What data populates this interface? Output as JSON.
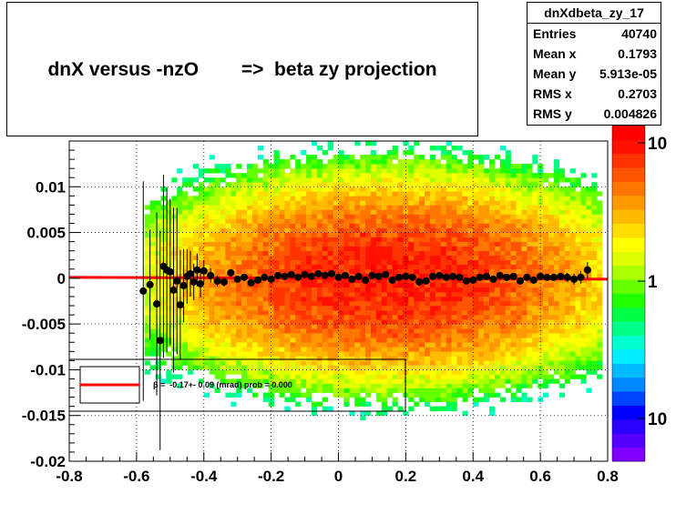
{
  "title": "dnX versus -nzO        =>  beta zy projection",
  "stats": {
    "name": "dnXdbeta_zy_17",
    "rows": [
      {
        "label": "Entries",
        "value": "40740"
      },
      {
        "label": "Mean x",
        "value": "0.1793"
      },
      {
        "label": "Mean y",
        "value": "5.913e-05"
      },
      {
        "label": "RMS x",
        "value": "0.2703"
      },
      {
        "label": "RMS y",
        "value": "0.004826"
      }
    ]
  },
  "fit_label": "β =  -0.17+- 0.09 (mrad) prob = 0.000",
  "colors": {
    "fit_line": "#ff0000",
    "profile_points": "#000000",
    "grid": "#000000"
  },
  "chart_data": {
    "type": "heatmap",
    "title": "dnX versus -nzO        =>  beta zy projection",
    "xlim": [
      -0.8,
      0.8
    ],
    "ylim": [
      -0.02,
      0.015
    ],
    "x_ticks": [
      "-0.8",
      "-0.6",
      "-0.4",
      "-0.2",
      "0",
      "0.2",
      "0.4",
      "0.6",
      "0.8"
    ],
    "y_ticks": [
      "-0.02",
      "-0.015",
      "-0.01",
      "-0.005",
      "0",
      "0.005",
      "0.01"
    ],
    "z_ticks": [
      "10",
      "1",
      "10"
    ],
    "z_scale": "log",
    "grid": true,
    "stats": {
      "entries": 40740,
      "mean_x": 0.1793,
      "mean_y": 5.913e-05,
      "rms_x": 0.2703,
      "rms_y": 0.004826
    },
    "fit": {
      "type": "line",
      "beta_mrad": -0.17,
      "beta_err_mrad": 0.09,
      "prob": 0.0,
      "y_at_xmin": 0.0001,
      "y_at_xmax": -0.0001
    },
    "profile": {
      "x": [
        -0.58,
        -0.56,
        -0.54,
        -0.53,
        -0.52,
        -0.51,
        -0.5,
        -0.49,
        -0.48,
        -0.47,
        -0.46,
        -0.45,
        -0.44,
        -0.43,
        -0.42,
        -0.41,
        -0.4,
        -0.38,
        -0.36,
        -0.34,
        -0.32,
        -0.3,
        -0.28,
        -0.26,
        -0.24,
        -0.22,
        -0.2,
        -0.18,
        -0.16,
        -0.14,
        -0.12,
        -0.1,
        -0.08,
        -0.06,
        -0.04,
        -0.02,
        0.0,
        0.02,
        0.04,
        0.06,
        0.08,
        0.1,
        0.12,
        0.14,
        0.16,
        0.18,
        0.2,
        0.22,
        0.24,
        0.26,
        0.28,
        0.3,
        0.32,
        0.34,
        0.36,
        0.38,
        0.4,
        0.42,
        0.44,
        0.46,
        0.48,
        0.5,
        0.52,
        0.54,
        0.56,
        0.58,
        0.6,
        0.62,
        0.64,
        0.66,
        0.68,
        0.7,
        0.72,
        0.74
      ],
      "y": [
        -0.0014,
        -0.0007,
        -0.0028,
        -0.0068,
        0.0013,
        0.0009,
        0.0007,
        -0.0013,
        -0.0003,
        -0.0029,
        -0.0008,
        0.0002,
        0.0005,
        -0.0004,
        0.0009,
        -0.0006,
        0.0008,
        0.0003,
        -0.0003,
        -0.0004,
        0.0006,
        -0.0001,
        0.0001,
        -0.0005,
        -0.0002,
        0.0001,
        -0.0001,
        0.0003,
        0.0002,
        0.0004,
        0.0001,
        0.0004,
        0.0002,
        0.0005,
        0.0003,
        0.0005,
        0.0001,
        0.0003,
        -0.0001,
        0.0002,
        -0.0002,
        0.0003,
        0.0002,
        0.0004,
        -0.0002,
        0.0001,
        0.0002,
        0.0001,
        -0.0004,
        -0.0003,
        0.0002,
        0.0003,
        0.0001,
        0.0002,
        0.0001,
        -0.0003,
        -0.0002,
        0.0001,
        0.0002,
        -0.0001,
        0.0003,
        0.0001,
        0.0002,
        -0.0003,
        0.0001,
        -0.0002,
        0.0002,
        0.0001,
        0.0001,
        0.0002,
        0.0001,
        -0.0001,
        0.0001,
        0.0009
      ],
      "yerr": [
        0.012,
        0.006,
        0.01,
        0.012,
        0.01,
        0.009,
        0.008,
        0.009,
        0.008,
        0.006,
        0.004,
        0.003,
        0.0025,
        0.002,
        0.0018,
        0.0015,
        0.0012,
        0.0008,
        0.0006,
        0.0005,
        0.0004,
        0.0003,
        0.0003,
        0.0002,
        0.0002,
        0.0002,
        0.0002,
        0.0002,
        0.0002,
        0.0002,
        0.0002,
        0.0002,
        0.0002,
        0.0002,
        0.0002,
        0.0002,
        0.0002,
        0.0002,
        0.0002,
        0.0002,
        0.0002,
        0.0002,
        0.0002,
        0.0002,
        0.0002,
        0.0002,
        0.0002,
        0.0002,
        0.0002,
        0.0002,
        0.0002,
        0.0002,
        0.0002,
        0.0002,
        0.0002,
        0.0002,
        0.0002,
        0.0002,
        0.0002,
        0.0002,
        0.0002,
        0.0002,
        0.0002,
        0.0002,
        0.0003,
        0.0003,
        0.0003,
        0.0003,
        0.0004,
        0.0004,
        0.0005,
        0.0006,
        0.0007,
        0.0009
      ]
    },
    "density": {
      "center_x": 0.15,
      "center_y": 0.0,
      "sigma_x": 0.28,
      "sigma_y": 0.005,
      "peak": 12
    }
  }
}
